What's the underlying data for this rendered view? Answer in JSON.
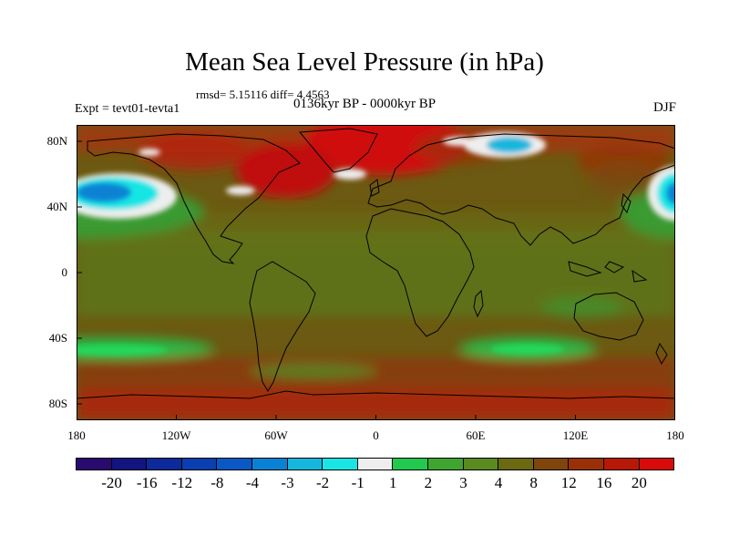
{
  "title": "Mean Sea Level Pressure (in hPa)",
  "stats": "rmsd= 5.15116 diff= 4.4563",
  "experiment": "Expt = tevt01-tevta1",
  "period": "0136kyr BP - 0000kyr BP",
  "season": "DJF",
  "y_axis": {
    "labels": [
      "80N",
      "40N",
      "0",
      "40S",
      "80S"
    ],
    "values": [
      80,
      40,
      0,
      -40,
      -80
    ]
  },
  "x_axis": {
    "labels": [
      "180",
      "120W",
      "60W",
      "0",
      "60E",
      "120E",
      "180"
    ],
    "values": [
      -180,
      -120,
      -60,
      0,
      60,
      120,
      180
    ]
  },
  "colorbar": {
    "labels": [
      "-20",
      "-16",
      "-12",
      "-8",
      "-4",
      "-3",
      "-2",
      "-1",
      "1",
      "2",
      "3",
      "4",
      "8",
      "12",
      "16",
      "20"
    ],
    "colors": [
      "#2a0a6e",
      "#121580",
      "#0d2a9b",
      "#0a3fb0",
      "#0a58c6",
      "#0a82d4",
      "#16b7dd",
      "#19e5e5",
      "#eeeeee",
      "#22c850",
      "#40a530",
      "#5a8a20",
      "#6b6a10",
      "#80450c",
      "#9a3008",
      "#b81806",
      "#d80a0a"
    ]
  },
  "colors": {
    "background": "#ffffff",
    "text": "#000000",
    "map_base": "#6c5a12"
  }
}
